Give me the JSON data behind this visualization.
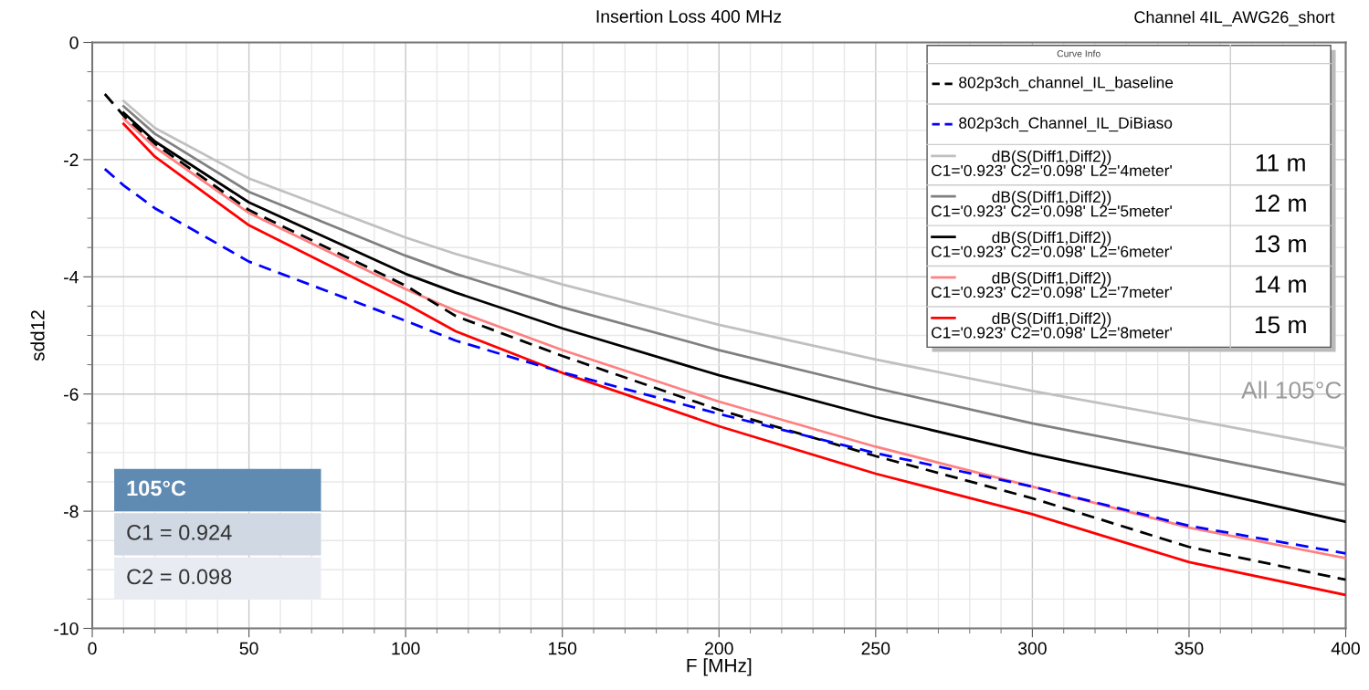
{
  "chart_data": {
    "type": "line",
    "title": "Insertion Loss 400 MHz",
    "subtitle": "Channel 4IL_AWG26_short",
    "xlabel": "F [MHz]",
    "ylabel": "sdd12",
    "legend_title": "Curve Info",
    "xlim": [
      0,
      400
    ],
    "xticks": [
      0,
      50,
      100,
      150,
      200,
      250,
      300,
      350,
      400
    ],
    "ylim": [
      -10,
      0
    ],
    "yticks": [
      -10,
      -8,
      -6,
      -4,
      -2,
      0
    ],
    "grid": true,
    "legend": "top right",
    "marker": "none",
    "annotations": [
      "All 105°C",
      "105°C",
      "C1 = 0.924",
      "C2 = 0.098",
      "11 m",
      "12 m",
      "13 m",
      "14 m",
      "15 m"
    ],
    "series": [
      {
        "name": "802p3ch_channel_IL_baseline",
        "color": "#000000",
        "line_style": "dashed",
        "x": [
          4,
          10,
          20,
          50,
          100,
          116,
          150,
          200,
          250,
          300,
          350,
          400
        ],
        "values": [
          -0.88,
          -1.25,
          -1.73,
          -2.86,
          -4.15,
          -4.67,
          -5.35,
          -6.27,
          -7.06,
          -7.78,
          -8.61,
          -9.17
        ]
      },
      {
        "name": "802p3ch_Channel_IL_DiBiaso",
        "color": "#0000ff",
        "line_style": "dashed",
        "x": [
          4,
          10,
          20,
          50,
          100,
          116,
          150,
          200,
          250,
          300,
          350,
          400
        ],
        "values": [
          -2.16,
          -2.44,
          -2.83,
          -3.74,
          -4.75,
          -5.09,
          -5.63,
          -6.34,
          -7.01,
          -7.58,
          -8.25,
          -8.72
        ]
      },
      {
        "name": "dB(S(Diff1,Diff2))\nC1='0.923' C2='0.098' L2='4meter'",
        "color": "#c0c0c0",
        "line_style": "solid",
        "x": [
          10,
          20,
          50,
          100,
          116,
          150,
          200,
          250,
          300,
          350,
          400
        ],
        "values": [
          -1.0,
          -1.46,
          -2.32,
          -3.33,
          -3.61,
          -4.13,
          -4.82,
          -5.41,
          -5.95,
          -6.43,
          -6.93
        ]
      },
      {
        "name": "dB(S(Diff1,Diff2))\nC1='0.923' C2='0.098' L2='5meter'",
        "color": "#808080",
        "line_style": "solid",
        "x": [
          10,
          20,
          50,
          100,
          116,
          150,
          200,
          250,
          300,
          350,
          400
        ],
        "values": [
          -1.09,
          -1.56,
          -2.55,
          -3.64,
          -3.95,
          -4.52,
          -5.25,
          -5.9,
          -6.5,
          -7.02,
          -7.55
        ]
      },
      {
        "name": "dB(S(Diff1,Diff2))\nC1='0.923' C2='0.098' L2='6meter'",
        "color": "#000000",
        "line_style": "solid",
        "x": [
          10,
          20,
          50,
          100,
          116,
          150,
          200,
          250,
          300,
          350,
          400
        ],
        "values": [
          -1.2,
          -1.69,
          -2.73,
          -3.95,
          -4.27,
          -4.88,
          -5.68,
          -6.39,
          -7.02,
          -7.58,
          -8.18
        ]
      },
      {
        "name": "dB(S(Diff1,Diff2))\nC1='0.923' C2='0.098' L2='7meter'",
        "color": "#ff8080",
        "line_style": "solid",
        "x": [
          10,
          20,
          50,
          100,
          116,
          150,
          200,
          250,
          300,
          350,
          400
        ],
        "values": [
          -1.3,
          -1.79,
          -2.91,
          -4.21,
          -4.58,
          -5.25,
          -6.13,
          -6.9,
          -7.58,
          -8.28,
          -8.8
        ]
      },
      {
        "name": "dB(S(Diff1,Diff2))\nC1='0.923' C2='0.098' L2='8meter'",
        "color": "#ff0000",
        "line_style": "solid",
        "x": [
          10,
          20,
          50,
          100,
          116,
          150,
          200,
          250,
          300,
          350,
          400
        ],
        "values": [
          -1.39,
          -1.95,
          -3.12,
          -4.46,
          -4.93,
          -5.64,
          -6.55,
          -7.36,
          -8.05,
          -8.87,
          -9.43
        ]
      }
    ]
  }
}
